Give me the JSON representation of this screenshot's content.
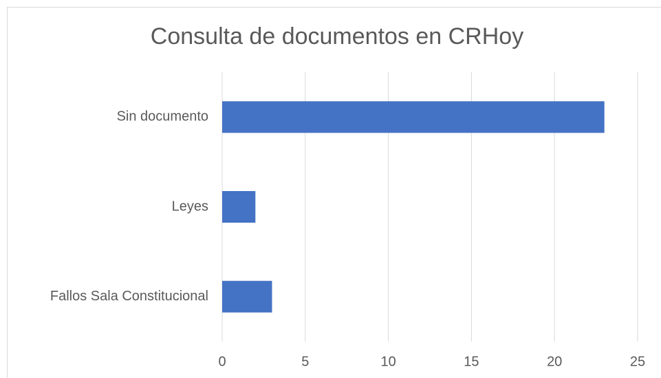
{
  "chart_data": {
    "type": "bar",
    "orientation": "horizontal",
    "title": "Consulta de documentos en CRHoy",
    "categories": [
      "Sin documento",
      "Leyes",
      "Fallos Sala Constitucional"
    ],
    "values": [
      23,
      2,
      3
    ],
    "color": "#4472c4",
    "xlim": [
      0,
      25
    ],
    "xticks": [
      0,
      5,
      10,
      15,
      20,
      25
    ],
    "grid": true
  }
}
